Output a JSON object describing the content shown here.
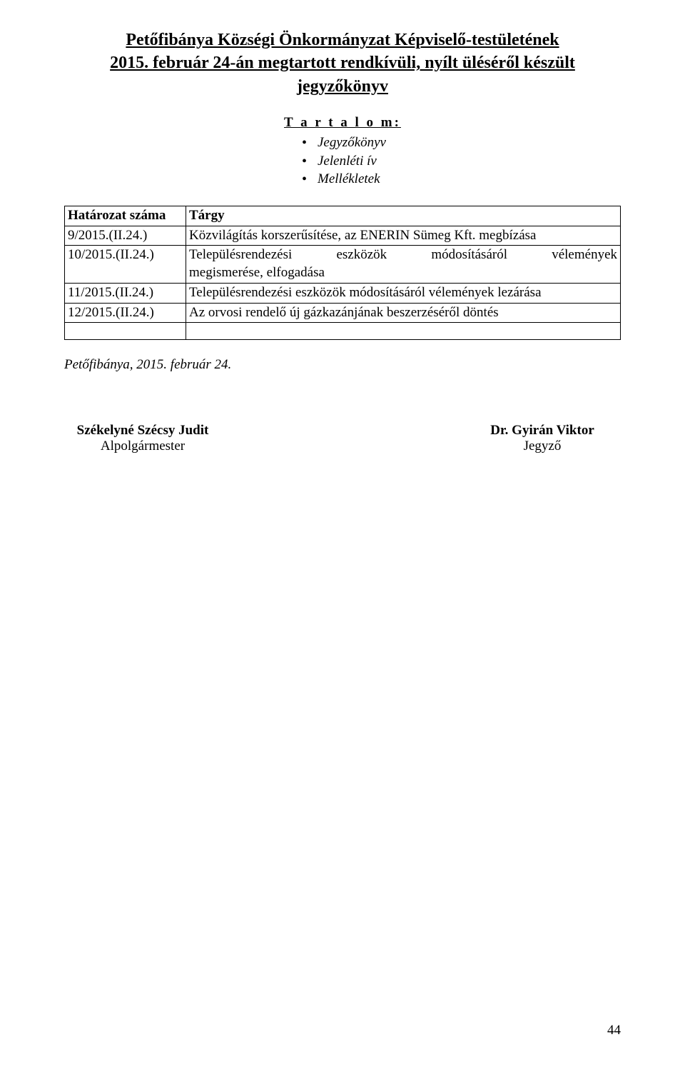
{
  "title": {
    "line1": "Petőfibánya Községi Önkormányzat Képviselő-testületének",
    "line2": "2015. február 24-án megtartott rendkívüli, nyílt üléséről készült",
    "line3": "jegyzőkönyv"
  },
  "contents": {
    "label": "T a r t a l o m:",
    "items": [
      "Jegyzőkönyv",
      "Jelenléti ív",
      "Mellékletek"
    ]
  },
  "table": {
    "header_num": "Határozat száma",
    "header_subject": "Tárgy",
    "rows": [
      {
        "num": "9/2015.(II.24.)",
        "subj": "Közvilágítás korszerűsítése, az ENERIN Sümeg Kft. megbízása"
      },
      {
        "num": "10/2015.(II.24.)",
        "subj_line1": "Településrendezési eszközök módosításáról vélemények",
        "subj_line2": "megismerése, elfogadása"
      },
      {
        "num": "11/2015.(II.24.)",
        "subj": "Településrendezési eszközök módosításáról vélemények lezárása"
      },
      {
        "num": "12/2015.(II.24.)",
        "subj": "Az orvosi rendelő új gázkazánjának beszerzéséről döntés"
      }
    ]
  },
  "place_date": "Petőfibánya, 2015. február 24.",
  "signatures": {
    "left_name": "Székelyné Szécsy Judit",
    "left_role": "Alpolgármester",
    "right_name": "Dr. Gyirán Viktor",
    "right_role": "Jegyző"
  },
  "page_number": "44"
}
